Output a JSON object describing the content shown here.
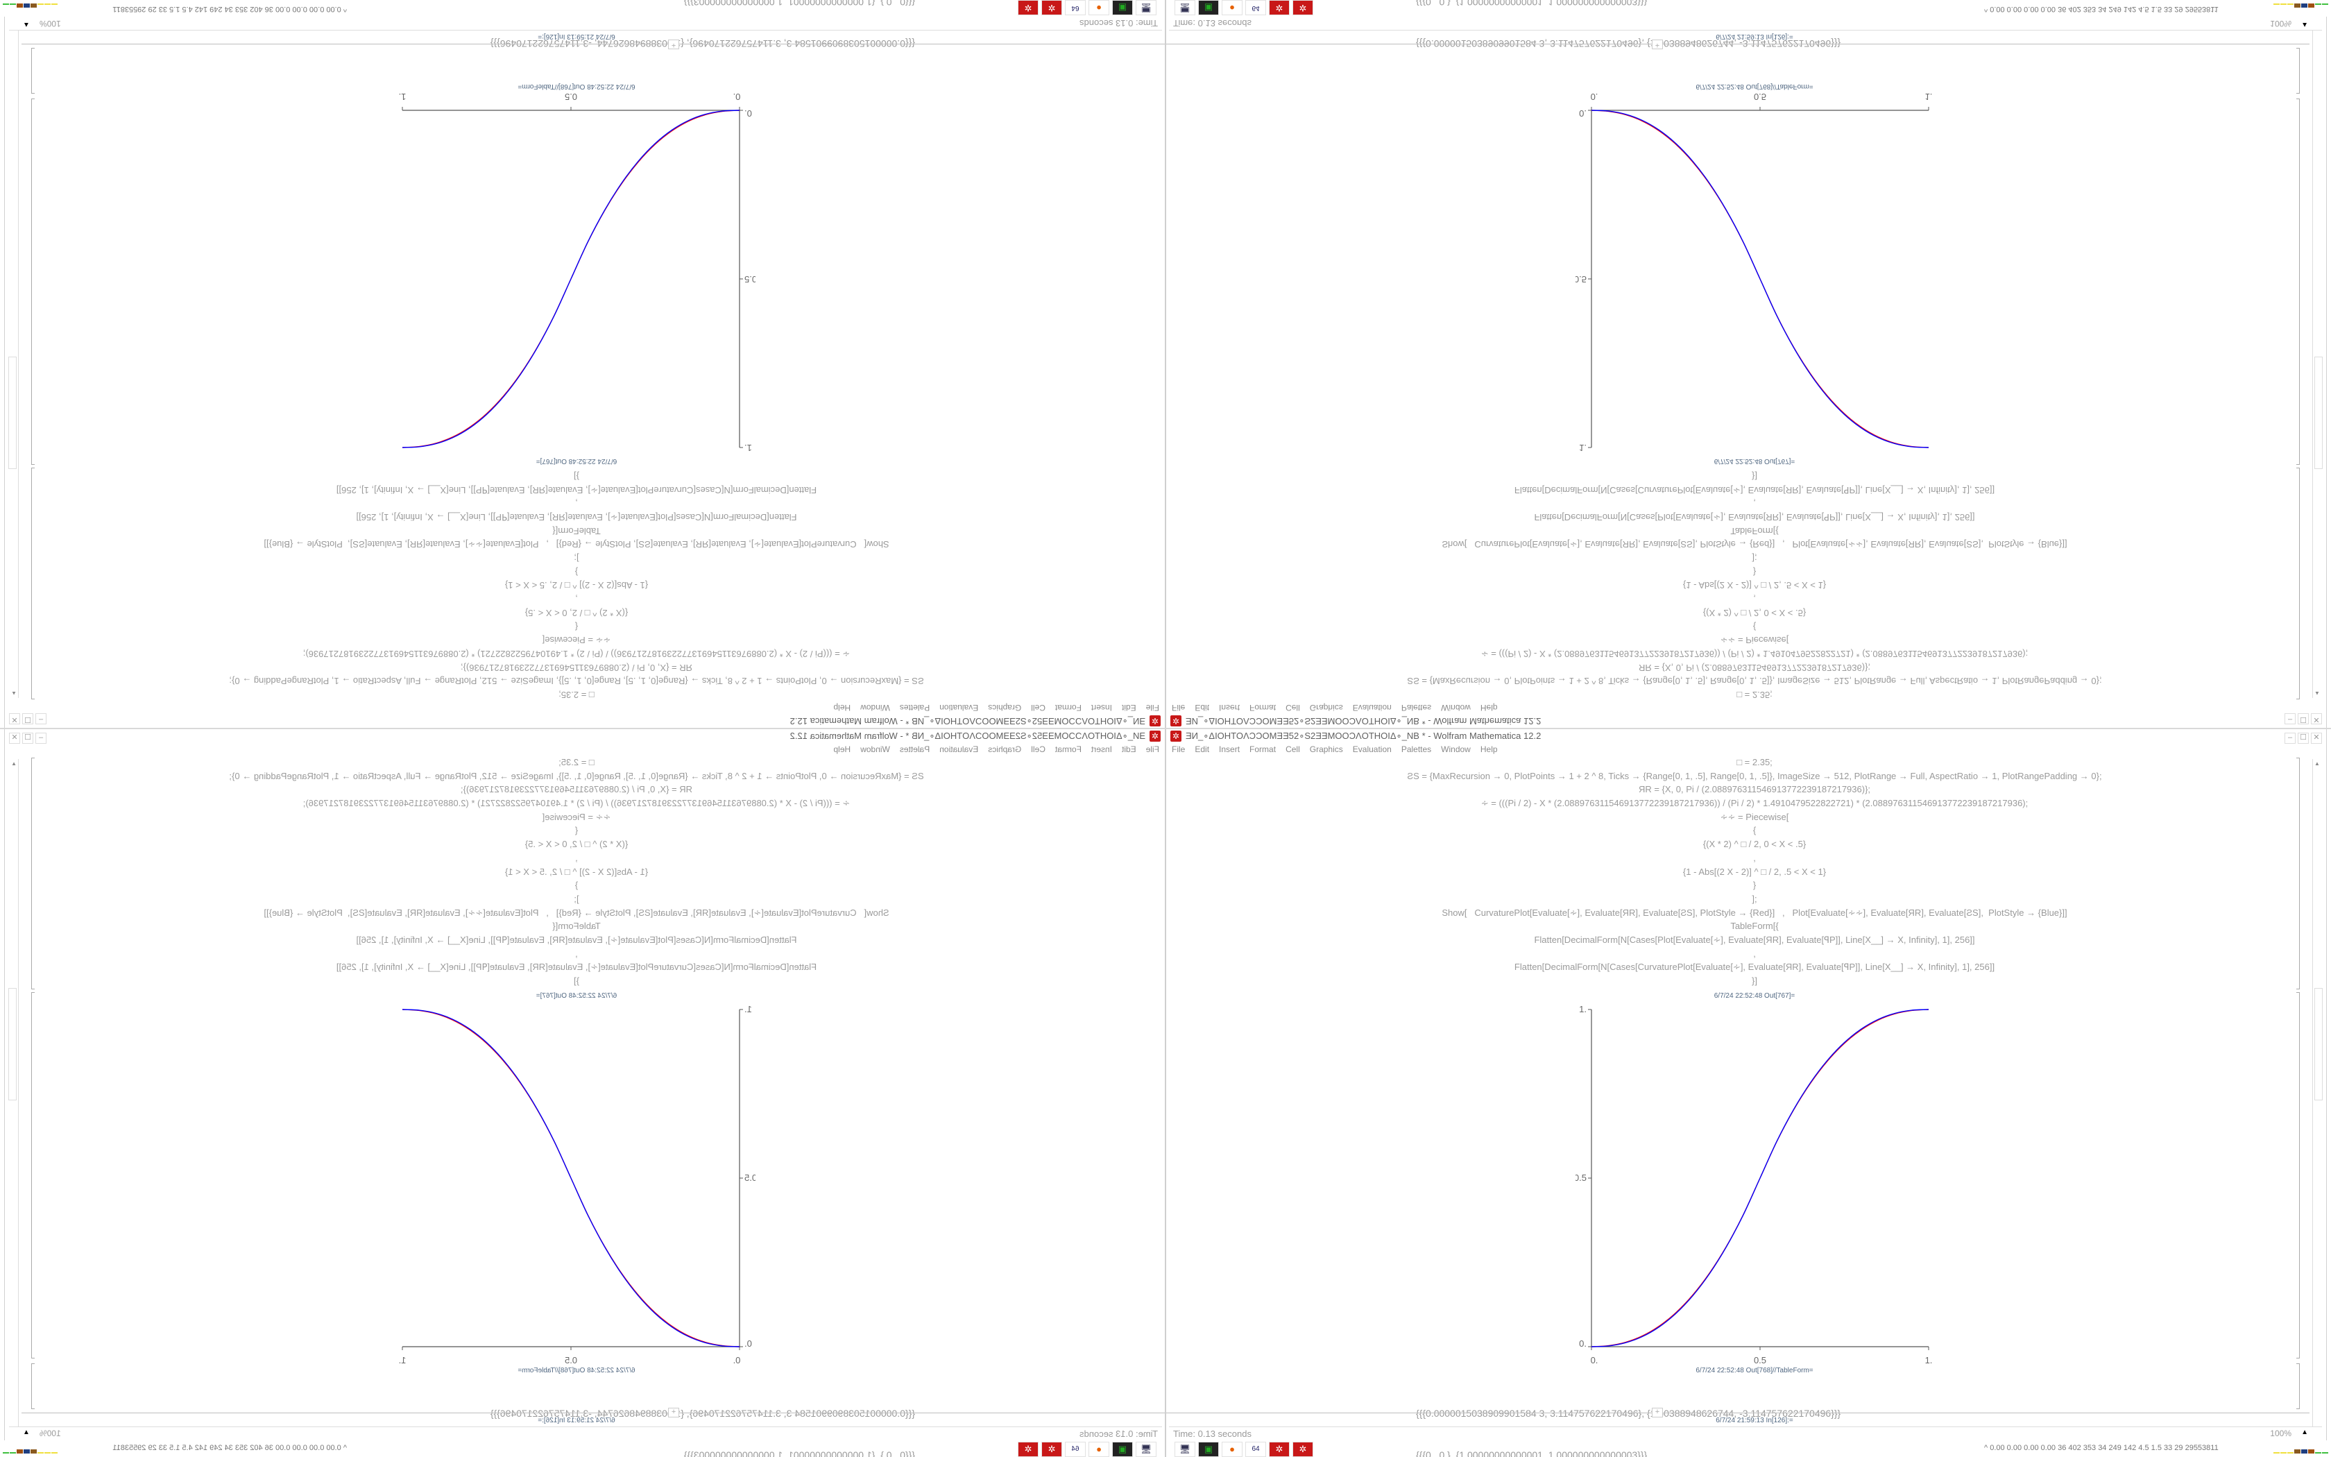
{
  "window": {
    "title": "ƎИ_∘ΔIOHTOΛƆƆOMƎƎ52∘S2ƎƎMOOƆΛOTHOIΔ∘_NB * - Wolfram Mathematica 12.2",
    "app_icon": "mathematica-icon",
    "buttons": {
      "minimize": "‒",
      "maximize": "☐",
      "close": "✕"
    }
  },
  "menu": [
    "File",
    "Edit",
    "Insert",
    "Format",
    "Cell",
    "Graphics",
    "Evaluation",
    "Palettes",
    "Window",
    "Help"
  ],
  "input_code": [
    "□ = 2.35;",
    "ƧS = {MaxRecursion → 0, PlotPoints → 1 + 2 ^ 8, Ticks → {Range[0, 1, .5], Range[0, 1, .5]}, ImageSize → 512, PlotRange → Full, AspectRatio → 1, PlotRangePadding → 0};",
    "ЯR = {X, 0, Pi / (2.088976311546913772239187217936)};",
    "∻ = (((Pi / 2) - X * (2.088976311546913772239187217936)) / (Pi / 2) * 1.4910479522822721) * (2.088976311546913772239187217936);",
    "∻∻ = Piecewise[",
    "{",
    "{(X * 2) ^ □ / 2, 0 < X < .5}",
    ",",
    "{1 - Abs[(2 X - 2)] ^ □ / 2, .5 < X < 1}",
    "}",
    "];",
    "Show[   CurvaturePlot[Evaluate[∻], Evaluate[ЯR], Evaluate[ƧS], PlotStyle → {Red}]   ,   Plot[Evaluate[∻∻], Evaluate[ЯR], Evaluate[ƧS],  PlotStyle → {Blue}]]",
    "TableForm[{",
    "Flatten[DecimalForm[N[Cases[Plot[Evaluate[∻], Evaluate[ЯR], Evaluate[ꟼP]], Line[X__] → X, Infinity], 1], 256]]",
    ",",
    "Flatten[DecimalForm[N[Cases[CurvaturePlot[Evaluate[∻], Evaluate[ЯR], Evaluate[ꟼP]], Line[X__] → X, Infinity], 1], 256]]",
    "}]"
  ],
  "out1_label": "6/7/24 22:52:48 Out[767]=",
  "out2_label": "6/7/24 22:52:48 Out[768]//TableForm=",
  "table_output": [
    "{{{0.0000015038909901584 3, 3.114757622170496}, {1.50388948626744, -3.114757622170496}}}",
    "{{{0., 0.}, {1.00000000000001, 1.000000000000003}}}"
  ],
  "next_input_label": "6/7/24 21:59:13 In[126]:=",
  "status": {
    "time": "Time: 0.13 seconds",
    "zoom": "100%"
  },
  "taskbar": {
    "icons": [
      "monitor-camera-icon",
      "terminal-icon",
      "firefox-icon",
      "floppy-64-icon",
      "mathematica-icon",
      "mathematica-icon"
    ],
    "tray_text": "^  0.00 0.00 0.00 0.00  36  402  353  34  249  142  4.5  1.5  33  29  29553811",
    "bar_colors": [
      "#f0e040",
      "#f0e040",
      "#f0e040",
      "#8a5a20",
      "#1f3f80",
      "#a05010",
      "#40c040",
      "#40c040"
    ]
  },
  "chart_data": {
    "type": "line",
    "xlim": [
      0,
      1
    ],
    "ylim": [
      0,
      1
    ],
    "xticks": [
      "0.",
      "0.5",
      "1."
    ],
    "yticks": [
      "0.",
      "0.5",
      "1."
    ],
    "x": [
      0,
      0.05,
      0.1,
      0.15,
      0.2,
      0.25,
      0.3,
      0.35,
      0.4,
      0.45,
      0.5,
      0.55,
      0.6,
      0.65,
      0.7,
      0.75,
      0.8,
      0.85,
      0.9,
      0.95,
      1
    ],
    "series": [
      {
        "color": "#ff0000",
        "values": [
          0,
          0.003,
          0.0128,
          0.0315,
          0.0605,
          0.1005,
          0.1528,
          0.218,
          0.297,
          0.3908,
          0.5,
          0.6092,
          0.703,
          0.782,
          0.8472,
          0.8995,
          0.9395,
          0.9685,
          0.9872,
          0.997,
          1
        ]
      },
      {
        "color": "#0000ff",
        "values": [
          0,
          0.0022,
          0.0114,
          0.0295,
          0.0581,
          0.0981,
          0.1506,
          0.2163,
          0.296,
          0.3903,
          0.5,
          0.6097,
          0.704,
          0.7837,
          0.8494,
          0.9019,
          0.9419,
          0.9705,
          0.9886,
          0.9978,
          1
        ]
      }
    ],
    "grid": false
  }
}
